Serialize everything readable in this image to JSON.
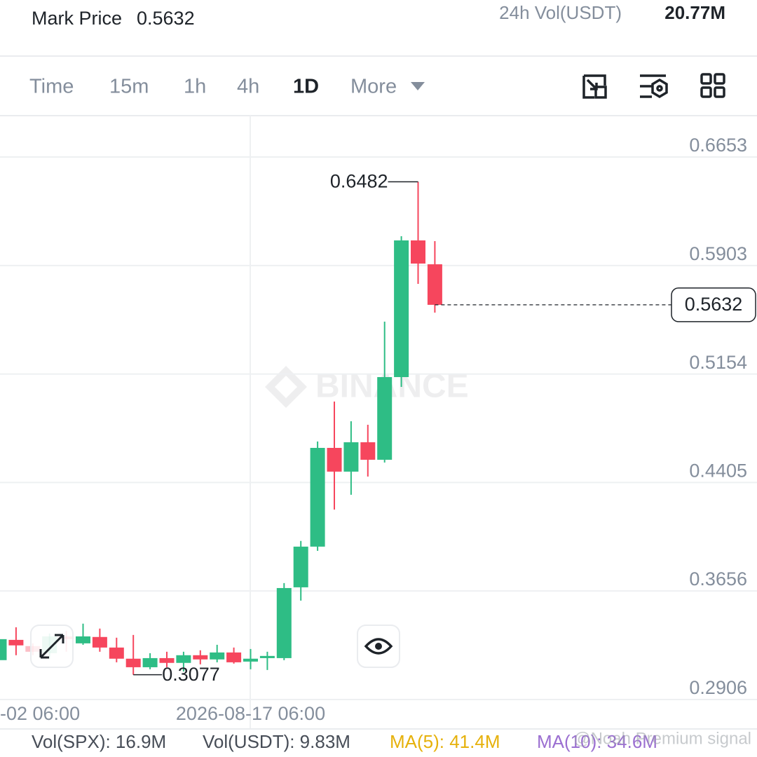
{
  "header": {
    "mark_price_label": "Mark Price",
    "mark_price": "0.5632",
    "vol_label": "24h Vol(USDT)",
    "vol_value": "20.77M"
  },
  "tabs": [
    "Time",
    "15m",
    "1h",
    "4h",
    "1D",
    "More"
  ],
  "active_tab": 4,
  "chart_data": {
    "type": "candlestick",
    "watermark": "BINANCE",
    "categories": [
      "-02 06:00",
      null,
      null,
      null,
      null,
      null,
      null,
      null,
      null,
      null,
      null,
      null,
      null,
      null,
      null,
      "2026-08-17 06:00",
      null,
      null,
      null,
      null,
      null,
      null,
      null,
      null,
      null,
      null,
      null
    ],
    "open": [
      0.3178,
      0.3318,
      0.3275,
      0.3226,
      0.3342,
      0.3294,
      0.3338,
      0.3265,
      0.3188,
      0.3129,
      0.3192,
      0.3159,
      0.3212,
      0.3183,
      0.3231,
      0.3168,
      0.3192,
      0.3192,
      0.3681,
      0.3962,
      0.4644,
      0.448,
      0.4683,
      0.4562,
      0.5133,
      0.6077,
      0.5912
    ],
    "high": [
      0.3342,
      0.3405,
      0.3294,
      0.3362,
      0.3381,
      0.343,
      0.3396,
      0.3333,
      0.3352,
      0.3226,
      0.3236,
      0.3236,
      0.3246,
      0.3284,
      0.3265,
      0.3255,
      0.3236,
      0.371,
      0.4001,
      0.4688,
      0.4964,
      0.4828,
      0.4804,
      0.5516,
      0.6106,
      0.6482,
      0.6072
    ],
    "low": [
      0.3163,
      0.3212,
      0.3212,
      0.3188,
      0.3236,
      0.3284,
      0.3236,
      0.3163,
      0.3077,
      0.3115,
      0.3129,
      0.31,
      0.3149,
      0.3163,
      0.3154,
      0.3115,
      0.311,
      0.3178,
      0.3589,
      0.3933,
      0.4218,
      0.432,
      0.4446,
      0.4543,
      0.5065,
      0.5777,
      0.5578
    ],
    "close": [
      0.3323,
      0.328,
      0.3236,
      0.3342,
      0.3323,
      0.3342,
      0.3265,
      0.3188,
      0.3129,
      0.3192,
      0.3159,
      0.3212,
      0.3183,
      0.3231,
      0.3163,
      0.3188,
      0.3207,
      0.3676,
      0.3962,
      0.4644,
      0.448,
      0.4683,
      0.4562,
      0.5133,
      0.6077,
      0.5917,
      0.5632
    ],
    "up_color": "#2ebd85",
    "down_color": "#f6465d",
    "ylim": [
      0.2906,
      0.6653
    ],
    "yticks": [
      0.6653,
      0.5903,
      0.5154,
      0.4405,
      0.3656,
      0.2906
    ],
    "grid": true
  },
  "volume_legend": [
    {
      "text": "Vol(SPX): 16.9M",
      "color": "#474d57"
    },
    {
      "text": "Vol(USDT): 9.83M",
      "color": "#474d57"
    },
    {
      "text": "MA(5): 41.4M",
      "color": "#e6b10b"
    },
    {
      "text": "MA(10): 34.6M",
      "color": "#9b6fd1"
    }
  ],
  "overlay_watermark": "@Noah Premium signal"
}
